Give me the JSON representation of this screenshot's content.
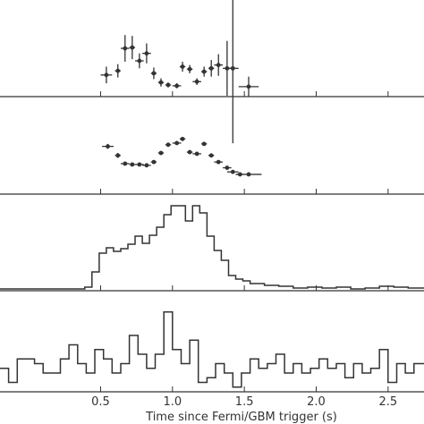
{
  "chart_data": {
    "type": "scatter",
    "xlabel": "Time since  Fermi/GBM trigger (s)",
    "xlim": [
      -0.2,
      2.75
    ],
    "xticks": [
      {
        "v": 0.5,
        "label": "0.5"
      },
      {
        "v": 1.0,
        "label": "1.0"
      },
      {
        "v": 1.5,
        "label": "1.5"
      },
      {
        "v": 2.0,
        "label": "2.0"
      },
      {
        "v": 2.5,
        "label": "2.5"
      }
    ],
    "panels": [
      {
        "kind": "errorbar",
        "ylim": [
          0,
          1
        ],
        "points": [
          {
            "x": 0.54,
            "xerr": 0.04,
            "y": 0.26,
            "yerr": 0.1
          },
          {
            "x": 0.62,
            "xerr": 0.02,
            "y": 0.31,
            "yerr": 0.08
          },
          {
            "x": 0.67,
            "xerr": 0.03,
            "y": 0.58,
            "yerr": 0.16
          },
          {
            "x": 0.72,
            "xerr": 0.02,
            "y": 0.59,
            "yerr": 0.14
          },
          {
            "x": 0.77,
            "xerr": 0.03,
            "y": 0.43,
            "yerr": 0.09
          },
          {
            "x": 0.82,
            "xerr": 0.03,
            "y": 0.52,
            "yerr": 0.12
          },
          {
            "x": 0.87,
            "xerr": 0.02,
            "y": 0.28,
            "yerr": 0.07
          },
          {
            "x": 0.92,
            "xerr": 0.02,
            "y": 0.17,
            "yerr": 0.05
          },
          {
            "x": 0.97,
            "xerr": 0.02,
            "y": 0.14,
            "yerr": 0.03
          },
          {
            "x": 1.03,
            "xerr": 0.03,
            "y": 0.13,
            "yerr": 0.03
          },
          {
            "x": 1.07,
            "xerr": 0.02,
            "y": 0.36,
            "yerr": 0.06
          },
          {
            "x": 1.12,
            "xerr": 0.02,
            "y": 0.33,
            "yerr": 0.05
          },
          {
            "x": 1.17,
            "xerr": 0.03,
            "y": 0.18,
            "yerr": 0.04
          },
          {
            "x": 1.22,
            "xerr": 0.02,
            "y": 0.3,
            "yerr": 0.06
          },
          {
            "x": 1.27,
            "xerr": 0.02,
            "y": 0.34,
            "yerr": 0.1
          },
          {
            "x": 1.32,
            "xerr": 0.03,
            "y": 0.38,
            "yerr": 0.13
          },
          {
            "x": 1.38,
            "xerr": 0.03,
            "y": 0.34,
            "yerr": 0.33
          },
          {
            "x": 1.42,
            "xerr": 0.04,
            "y": 0.34,
            "yerr": 0.9
          },
          {
            "x": 1.53,
            "xerr": 0.07,
            "y": 0.12,
            "yerr": 0.12
          }
        ]
      },
      {
        "kind": "errorbar",
        "ylim": [
          0,
          1
        ],
        "points": [
          {
            "x": 0.55,
            "xerr": 0.04,
            "y": 0.58,
            "yerr": 0.03
          },
          {
            "x": 0.62,
            "xerr": 0.02,
            "y": 0.47,
            "yerr": 0.03
          },
          {
            "x": 0.67,
            "xerr": 0.03,
            "y": 0.37,
            "yerr": 0.02
          },
          {
            "x": 0.72,
            "xerr": 0.02,
            "y": 0.36,
            "yerr": 0.02
          },
          {
            "x": 0.77,
            "xerr": 0.03,
            "y": 0.36,
            "yerr": 0.02
          },
          {
            "x": 0.82,
            "xerr": 0.03,
            "y": 0.35,
            "yerr": 0.02
          },
          {
            "x": 0.87,
            "xerr": 0.02,
            "y": 0.39,
            "yerr": 0.02
          },
          {
            "x": 0.92,
            "xerr": 0.02,
            "y": 0.5,
            "yerr": 0.02
          },
          {
            "x": 0.97,
            "xerr": 0.02,
            "y": 0.6,
            "yerr": 0.02
          },
          {
            "x": 1.03,
            "xerr": 0.03,
            "y": 0.62,
            "yerr": 0.02
          },
          {
            "x": 1.07,
            "xerr": 0.02,
            "y": 0.67,
            "yerr": 0.02
          },
          {
            "x": 1.12,
            "xerr": 0.02,
            "y": 0.51,
            "yerr": 0.02
          },
          {
            "x": 1.17,
            "xerr": 0.03,
            "y": 0.49,
            "yerr": 0.02
          },
          {
            "x": 1.22,
            "xerr": 0.02,
            "y": 0.61,
            "yerr": 0.02
          },
          {
            "x": 1.27,
            "xerr": 0.02,
            "y": 0.47,
            "yerr": 0.02
          },
          {
            "x": 1.32,
            "xerr": 0.03,
            "y": 0.39,
            "yerr": 0.02
          },
          {
            "x": 1.38,
            "xerr": 0.03,
            "y": 0.32,
            "yerr": 0.02
          },
          {
            "x": 1.42,
            "xerr": 0.04,
            "y": 0.27,
            "yerr": 0.02
          },
          {
            "x": 1.47,
            "xerr": 0.02,
            "y": 0.24,
            "yerr": 0.02
          },
          {
            "x": 1.53,
            "xerr": 0.09,
            "y": 0.24,
            "yerr": 0.02
          }
        ]
      },
      {
        "kind": "step",
        "ylim": [
          0,
          1
        ],
        "edges": [
          -0.2,
          0.39,
          0.44,
          0.49,
          0.54,
          0.59,
          0.64,
          0.69,
          0.74,
          0.79,
          0.84,
          0.89,
          0.94,
          0.99,
          1.04,
          1.09,
          1.14,
          1.19,
          1.24,
          1.29,
          1.34,
          1.39,
          1.44,
          1.49,
          1.54,
          1.64,
          1.74,
          1.84,
          1.94,
          2.04,
          2.14,
          2.24,
          2.34,
          2.44,
          2.54,
          2.64,
          2.75
        ],
        "values": [
          0.02,
          0.04,
          0.21,
          0.42,
          0.48,
          0.44,
          0.47,
          0.52,
          0.61,
          0.53,
          0.62,
          0.71,
          0.85,
          0.95,
          0.95,
          0.78,
          0.95,
          0.87,
          0.61,
          0.45,
          0.34,
          0.17,
          0.13,
          0.11,
          0.08,
          0.06,
          0.05,
          0.03,
          0.04,
          0.03,
          0.04,
          0.02,
          0.03,
          0.05,
          0.04,
          0.03
        ]
      },
      {
        "kind": "step",
        "ylim": [
          0,
          1
        ],
        "edges": [
          -0.2,
          -0.14,
          -0.08,
          -0.02,
          0.04,
          0.1,
          0.16,
          0.22,
          0.28,
          0.34,
          0.4,
          0.46,
          0.52,
          0.58,
          0.64,
          0.7,
          0.76,
          0.82,
          0.88,
          0.94,
          1.0,
          1.06,
          1.12,
          1.18,
          1.24,
          1.3,
          1.36,
          1.42,
          1.48,
          1.54,
          1.6,
          1.66,
          1.72,
          1.78,
          1.84,
          1.9,
          1.96,
          2.02,
          2.08,
          2.14,
          2.2,
          2.26,
          2.32,
          2.38,
          2.44,
          2.5,
          2.56,
          2.62,
          2.68,
          2.75
        ],
        "values": [
          0.25,
          0.1,
          0.35,
          0.35,
          0.3,
          0.2,
          0.2,
          0.35,
          0.5,
          0.3,
          0.2,
          0.45,
          0.35,
          0.2,
          0.3,
          0.6,
          0.4,
          0.25,
          0.4,
          0.85,
          0.45,
          0.3,
          0.55,
          0.1,
          0.15,
          0.3,
          0.2,
          0.05,
          0.2,
          0.35,
          0.25,
          0.3,
          0.4,
          0.2,
          0.3,
          0.2,
          0.25,
          0.35,
          0.25,
          0.3,
          0.15,
          0.3,
          0.2,
          0.25,
          0.45,
          0.1,
          0.3,
          0.2,
          0.3
        ]
      }
    ]
  }
}
